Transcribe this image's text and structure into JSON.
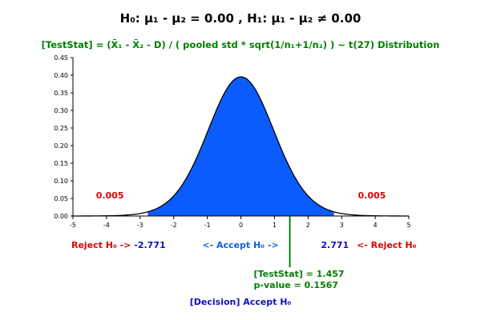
{
  "chart_data": {
    "type": "area",
    "title": "H₀: μ₁ - μ₂ = 0.00 , H₁: μ₁ - μ₂ ≠ 0.00",
    "subtitle": "[TestStat] = (X̄₁ - X̄₂ - D) / ( pooled std * sqrt(1/n₁+1/n₂) ) ~ t(27) Distribution",
    "distribution": "t",
    "df": 27,
    "xlim": [
      -5,
      5
    ],
    "ylim": [
      0,
      0.45
    ],
    "x_ticks": [
      "-5",
      "-4",
      "-3",
      "-2",
      "-1",
      "0",
      "1",
      "2",
      "3",
      "4",
      "5"
    ],
    "y_ticks": [
      "0.00",
      "0.05",
      "0.10",
      "0.15",
      "0.20",
      "0.25",
      "0.30",
      "0.35",
      "0.40",
      "0.45"
    ],
    "critical_lower": -2.771,
    "critical_upper": 2.771,
    "critical_lower_label": "-2.771",
    "critical_upper_label": "2.771",
    "tail_area_left": "0.005",
    "tail_area_right": "0.005",
    "reject_left_label": "Reject H₀ ->",
    "accept_label": "<- Accept H₀ ->",
    "reject_right_label": "<- Reject H₀",
    "test_stat": 1.457,
    "test_stat_label": "[TestStat] = 1.457",
    "p_value_label": "p-value = 0.1567",
    "decision_label": "[Decision] Accept H₀",
    "colors": {
      "fill": "#0a5cff",
      "curve": "#000000",
      "reject_text": "#e00000",
      "accept_text": "#1060e0",
      "stat_text": "#008000",
      "decision_text": "#1010c0"
    }
  }
}
